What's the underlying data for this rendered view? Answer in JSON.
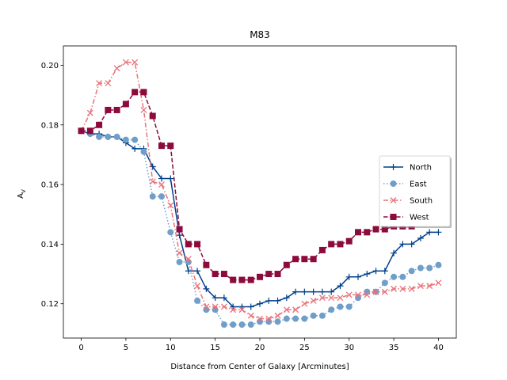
{
  "chart_data": {
    "type": "line",
    "title": "M83",
    "xlabel": "Distance from Center of Galaxy [Arcminutes]",
    "ylabel": "A",
    "ylabel_sub": "V",
    "xlim": [
      -2,
      42
    ],
    "ylim": [
      0.1085,
      0.2065
    ],
    "xticks": [
      0,
      5,
      10,
      15,
      20,
      25,
      30,
      35,
      40
    ],
    "yticks": [
      0.12,
      0.14,
      0.16,
      0.18,
      0.2
    ],
    "ytick_labels": [
      "0.12",
      "0.14",
      "0.16",
      "0.18",
      "0.20"
    ],
    "grid": false,
    "legend_position": "center-right",
    "x": [
      0,
      1,
      2,
      3,
      4,
      5,
      6,
      7,
      8,
      9,
      10,
      11,
      12,
      13,
      14,
      15,
      16,
      17,
      18,
      19,
      20,
      21,
      22,
      23,
      24,
      25,
      26,
      27,
      28,
      29,
      30,
      31,
      32,
      33,
      34,
      35,
      36,
      37,
      38,
      39,
      40
    ],
    "series": [
      {
        "name": "North",
        "color": "#003f8a",
        "linestyle": "solid",
        "marker": "plus",
        "values": [
          0.178,
          0.177,
          0.177,
          0.176,
          0.176,
          0.174,
          0.172,
          0.172,
          0.166,
          0.162,
          0.162,
          0.143,
          0.131,
          0.131,
          0.125,
          0.122,
          0.122,
          0.119,
          0.119,
          0.119,
          0.12,
          0.121,
          0.121,
          0.122,
          0.124,
          0.124,
          0.124,
          0.124,
          0.124,
          0.126,
          0.129,
          0.129,
          0.13,
          0.131,
          0.131,
          0.137,
          0.14,
          0.14,
          0.142,
          0.144,
          0.144
        ]
      },
      {
        "name": "East",
        "color": "#6f9ec8",
        "linestyle": "dotted",
        "marker": "circle",
        "values": [
          0.178,
          0.177,
          0.176,
          0.176,
          0.176,
          0.175,
          0.175,
          0.171,
          0.156,
          0.156,
          0.144,
          0.134,
          0.134,
          0.121,
          0.118,
          0.118,
          0.113,
          0.113,
          0.113,
          0.113,
          0.114,
          0.114,
          0.114,
          0.115,
          0.115,
          0.115,
          0.116,
          0.116,
          0.118,
          0.119,
          0.119,
          0.122,
          0.124,
          0.124,
          0.127,
          0.129,
          0.129,
          0.131,
          0.132,
          0.132,
          0.133
        ]
      },
      {
        "name": "South",
        "color": "#e8737a",
        "linestyle": "dashdot",
        "marker": "x",
        "values": [
          0.178,
          0.184,
          0.194,
          0.194,
          0.199,
          0.201,
          0.201,
          0.185,
          0.161,
          0.16,
          0.153,
          0.137,
          0.135,
          0.126,
          0.119,
          0.119,
          0.119,
          0.118,
          0.118,
          0.116,
          0.115,
          0.115,
          0.116,
          0.118,
          0.118,
          0.12,
          0.121,
          0.122,
          0.122,
          0.122,
          0.123,
          0.123,
          0.123,
          0.124,
          0.124,
          0.125,
          0.125,
          0.125,
          0.126,
          0.126,
          0.127
        ]
      },
      {
        "name": "West",
        "color": "#8c0a3c",
        "linestyle": "dashed",
        "marker": "square",
        "values": [
          0.178,
          0.178,
          0.18,
          0.185,
          0.185,
          0.187,
          0.191,
          0.191,
          0.183,
          0.173,
          0.173,
          0.145,
          0.14,
          0.14,
          0.133,
          0.13,
          0.13,
          0.128,
          0.128,
          0.128,
          0.129,
          0.13,
          0.13,
          0.133,
          0.135,
          0.135,
          0.135,
          0.138,
          0.14,
          0.14,
          0.141,
          0.144,
          0.144,
          0.145,
          0.145,
          0.146,
          0.146,
          0.146,
          0.147,
          0.147,
          0.148
        ]
      }
    ]
  }
}
